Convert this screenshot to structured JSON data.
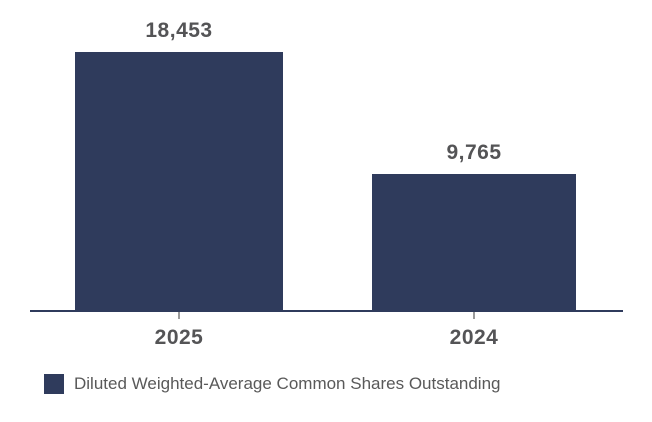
{
  "chart_data": {
    "type": "bar",
    "title": "",
    "categories": [
      "2025",
      "2024"
    ],
    "series": [
      {
        "name": "Diluted Weighted-Average Common Shares Outstanding",
        "values": [
          18453,
          9765
        ]
      }
    ],
    "value_labels": [
      "18,453",
      "9,765"
    ],
    "xlabel": "",
    "ylabel": "",
    "ylim": [
      0,
      18453
    ],
    "grid": false,
    "legend_position": "bottom-left",
    "colors": {
      "bar": "#2f3b5c",
      "axis_line": "#2f3b5c",
      "tick": "#9b9b9b",
      "data_label": "#545456",
      "category_label": "#545456",
      "legend_text": "#595959",
      "background": "#ffffff"
    }
  }
}
